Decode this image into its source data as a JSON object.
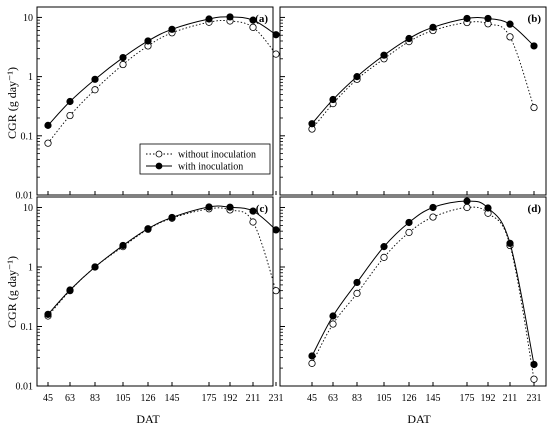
{
  "figure": {
    "ylabel": "CGR (g day⁻¹)",
    "xlabel": "DAT",
    "legend": {
      "without": "without inoculation",
      "with": "with inoculation"
    },
    "colors": {
      "ink": "#000000",
      "open_fill": "#ffffff"
    }
  },
  "chart_data": [
    {
      "type": "line",
      "panel_label": "(a)",
      "x": [
        45,
        63,
        83,
        105,
        126,
        145,
        175,
        192,
        211,
        231
      ],
      "yscale": "log",
      "ylim": [
        0.01,
        15
      ],
      "yticks": [
        0.01,
        0.1,
        1,
        10
      ],
      "ytick_labels": [
        "0.01",
        "0.1",
        "1",
        "10"
      ],
      "series": [
        {
          "name": "without inoculation",
          "style": "dotted-open-circle",
          "values": [
            0.075,
            0.22,
            0.6,
            1.6,
            3.3,
            5.5,
            8.3,
            8.7,
            6.8,
            2.4
          ]
        },
        {
          "name": "with inoculation",
          "style": "solid-filled-circle",
          "values": [
            0.15,
            0.38,
            0.9,
            2.1,
            4.0,
            6.3,
            9.4,
            10.2,
            9.0,
            5.1
          ]
        }
      ],
      "legend_position": "center"
    },
    {
      "type": "line",
      "panel_label": "(b)",
      "x": [
        45,
        63,
        83,
        105,
        126,
        145,
        175,
        192,
        211,
        231
      ],
      "yscale": "log",
      "ylim": [
        0.01,
        15
      ],
      "yticks": [
        0.01,
        0.1,
        1,
        10
      ],
      "series": [
        {
          "name": "without inoculation",
          "style": "dotted-open-circle",
          "values": [
            0.13,
            0.35,
            0.9,
            2.0,
            3.9,
            6.0,
            8.2,
            7.8,
            4.7,
            0.3
          ]
        },
        {
          "name": "with inoculation",
          "style": "solid-filled-circle",
          "values": [
            0.16,
            0.41,
            1.0,
            2.3,
            4.4,
            6.8,
            9.6,
            9.6,
            7.7,
            3.3
          ]
        }
      ]
    },
    {
      "type": "line",
      "panel_label": "(c)",
      "x": [
        45,
        63,
        83,
        105,
        126,
        145,
        175,
        192,
        211,
        231
      ],
      "yscale": "log",
      "ylim": [
        0.01,
        15
      ],
      "yticks": [
        0.01,
        0.1,
        1,
        10
      ],
      "ytick_labels": [
        "0.01",
        "0.1",
        "1",
        "10"
      ],
      "xtick_labels": [
        "45",
        "63",
        "83",
        "105",
        "126",
        "145",
        "175",
        "192",
        "211",
        "231"
      ],
      "series": [
        {
          "name": "without inoculation",
          "style": "dotted-open-circle",
          "values": [
            0.15,
            0.4,
            1.0,
            2.2,
            4.3,
            6.6,
            9.5,
            9.1,
            5.7,
            0.4
          ]
        },
        {
          "name": "with inoculation",
          "style": "solid-filled-circle",
          "values": [
            0.16,
            0.41,
            1.0,
            2.3,
            4.4,
            6.8,
            10.2,
            10.1,
            8.7,
            4.2
          ]
        }
      ]
    },
    {
      "type": "line",
      "panel_label": "(d)",
      "x": [
        45,
        63,
        83,
        105,
        126,
        145,
        175,
        192,
        211,
        231
      ],
      "yscale": "log",
      "ylim": [
        0.01,
        15
      ],
      "yticks": [
        0.01,
        0.1,
        1,
        10
      ],
      "xtick_labels": [
        "45",
        "63",
        "83",
        "105",
        "126",
        "145",
        "175",
        "192",
        "211",
        "231"
      ],
      "series": [
        {
          "name": "without inoculation",
          "style": "dotted-open-circle",
          "values": [
            0.024,
            0.11,
            0.36,
            1.45,
            3.8,
            6.9,
            10.0,
            8.0,
            2.3,
            0.013
          ]
        },
        {
          "name": "with inoculation",
          "style": "solid-filled-circle",
          "values": [
            0.032,
            0.15,
            0.55,
            2.2,
            5.6,
            10.0,
            12.8,
            9.8,
            2.5,
            0.023
          ]
        }
      ]
    }
  ]
}
